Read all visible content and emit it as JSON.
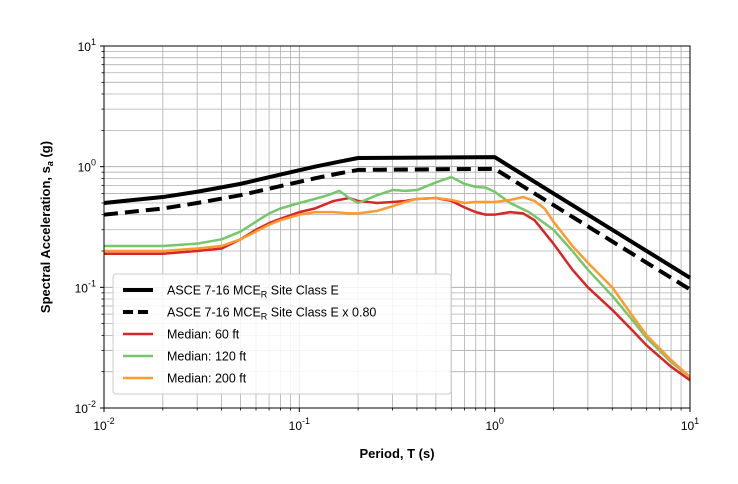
{
  "chart_data": {
    "type": "line",
    "xscale": "log",
    "yscale": "log",
    "xlim": [
      0.01,
      10
    ],
    "ylim": [
      0.01,
      10
    ],
    "grid": true,
    "xlabel": "Period, T (s)",
    "ylabel": {
      "main": "Spectral Acceleration, s",
      "sub": "a",
      "unit": " (g)"
    },
    "x_ticks": [
      {
        "base": "10",
        "exp": "-2"
      },
      {
        "base": "10",
        "exp": "-1"
      },
      {
        "base": "10",
        "exp": "0"
      },
      {
        "base": "10",
        "exp": "1"
      }
    ],
    "y_ticks": [
      {
        "base": "10",
        "exp": "-2"
      },
      {
        "base": "10",
        "exp": "-1"
      },
      {
        "base": "10",
        "exp": "0"
      },
      {
        "base": "10",
        "exp": "1"
      }
    ],
    "legend_position": "lower-left",
    "series": [
      {
        "name": "ASCE 7-16 MCER Site Class E",
        "legend": {
          "pre": "ASCE 7-16 MCE",
          "sub": "R",
          "post": " Site Class E"
        },
        "color": "#000000",
        "style": "solid",
        "width": 4,
        "points": [
          [
            0.01,
            0.5
          ],
          [
            0.02,
            0.56
          ],
          [
            0.03,
            0.62
          ],
          [
            0.05,
            0.72
          ],
          [
            0.08,
            0.86
          ],
          [
            0.12,
            1.0
          ],
          [
            0.16,
            1.1
          ],
          [
            0.2,
            1.18
          ],
          [
            1.0,
            1.2
          ],
          [
            10,
            0.12
          ]
        ]
      },
      {
        "name": "ASCE 7-16 MCER Site Class E x 0.80",
        "legend": {
          "pre": "ASCE 7-16 MCE",
          "sub": "R",
          "post": " Site Class E x 0.80"
        },
        "color": "#000000",
        "style": "dashed",
        "width": 4,
        "points": [
          [
            0.01,
            0.4
          ],
          [
            0.02,
            0.45
          ],
          [
            0.03,
            0.5
          ],
          [
            0.05,
            0.58
          ],
          [
            0.08,
            0.69
          ],
          [
            0.12,
            0.8
          ],
          [
            0.16,
            0.88
          ],
          [
            0.2,
            0.94
          ],
          [
            1.0,
            0.96
          ],
          [
            10,
            0.096
          ]
        ]
      },
      {
        "name": "Median: 60 ft",
        "legend": {
          "pre": "Median: 60 ft",
          "sub": "",
          "post": ""
        },
        "color": "#d62728",
        "style": "solid",
        "width": 2.5,
        "points": [
          [
            0.01,
            0.19
          ],
          [
            0.02,
            0.19
          ],
          [
            0.03,
            0.2
          ],
          [
            0.04,
            0.21
          ],
          [
            0.05,
            0.25
          ],
          [
            0.06,
            0.3
          ],
          [
            0.07,
            0.34
          ],
          [
            0.08,
            0.37
          ],
          [
            0.1,
            0.42
          ],
          [
            0.12,
            0.45
          ],
          [
            0.15,
            0.52
          ],
          [
            0.18,
            0.55
          ],
          [
            0.2,
            0.52
          ],
          [
            0.25,
            0.5
          ],
          [
            0.3,
            0.51
          ],
          [
            0.35,
            0.52
          ],
          [
            0.4,
            0.54
          ],
          [
            0.5,
            0.55
          ],
          [
            0.6,
            0.52
          ],
          [
            0.7,
            0.46
          ],
          [
            0.8,
            0.42
          ],
          [
            0.9,
            0.4
          ],
          [
            1.0,
            0.4
          ],
          [
            1.2,
            0.42
          ],
          [
            1.4,
            0.41
          ],
          [
            1.6,
            0.36
          ],
          [
            2.0,
            0.23
          ],
          [
            2.5,
            0.14
          ],
          [
            3.0,
            0.1
          ],
          [
            4.0,
            0.065
          ],
          [
            5.0,
            0.045
          ],
          [
            6.0,
            0.033
          ],
          [
            8.0,
            0.022
          ],
          [
            10,
            0.017
          ]
        ]
      },
      {
        "name": "Median: 120 ft",
        "legend": {
          "pre": "Median: 120 ft",
          "sub": "",
          "post": ""
        },
        "color": "#77c66e",
        "style": "solid",
        "width": 2.5,
        "points": [
          [
            0.01,
            0.22
          ],
          [
            0.02,
            0.22
          ],
          [
            0.03,
            0.23
          ],
          [
            0.04,
            0.25
          ],
          [
            0.05,
            0.29
          ],
          [
            0.06,
            0.35
          ],
          [
            0.07,
            0.41
          ],
          [
            0.08,
            0.45
          ],
          [
            0.1,
            0.5
          ],
          [
            0.12,
            0.54
          ],
          [
            0.14,
            0.58
          ],
          [
            0.16,
            0.63
          ],
          [
            0.18,
            0.55
          ],
          [
            0.2,
            0.5
          ],
          [
            0.25,
            0.58
          ],
          [
            0.3,
            0.64
          ],
          [
            0.35,
            0.63
          ],
          [
            0.4,
            0.64
          ],
          [
            0.5,
            0.74
          ],
          [
            0.6,
            0.82
          ],
          [
            0.7,
            0.72
          ],
          [
            0.8,
            0.68
          ],
          [
            0.9,
            0.67
          ],
          [
            1.0,
            0.62
          ],
          [
            1.2,
            0.5
          ],
          [
            1.5,
            0.42
          ],
          [
            2.0,
            0.3
          ],
          [
            2.5,
            0.2
          ],
          [
            3.0,
            0.14
          ],
          [
            4.0,
            0.085
          ],
          [
            5.0,
            0.055
          ],
          [
            6.0,
            0.038
          ],
          [
            8.0,
            0.024
          ],
          [
            10,
            0.018
          ]
        ]
      },
      {
        "name": "Median: 200 ft",
        "legend": {
          "pre": "Median: 200 ft",
          "sub": "",
          "post": ""
        },
        "color": "#ff9a2e",
        "style": "solid",
        "width": 2.5,
        "points": [
          [
            0.01,
            0.2
          ],
          [
            0.02,
            0.2
          ],
          [
            0.03,
            0.21
          ],
          [
            0.04,
            0.22
          ],
          [
            0.05,
            0.25
          ],
          [
            0.06,
            0.29
          ],
          [
            0.07,
            0.33
          ],
          [
            0.08,
            0.36
          ],
          [
            0.1,
            0.4
          ],
          [
            0.12,
            0.42
          ],
          [
            0.15,
            0.42
          ],
          [
            0.18,
            0.41
          ],
          [
            0.2,
            0.41
          ],
          [
            0.25,
            0.43
          ],
          [
            0.3,
            0.47
          ],
          [
            0.35,
            0.51
          ],
          [
            0.4,
            0.54
          ],
          [
            0.5,
            0.55
          ],
          [
            0.6,
            0.53
          ],
          [
            0.7,
            0.5
          ],
          [
            0.8,
            0.51
          ],
          [
            1.0,
            0.51
          ],
          [
            1.2,
            0.53
          ],
          [
            1.4,
            0.56
          ],
          [
            1.6,
            0.52
          ],
          [
            1.8,
            0.45
          ],
          [
            2.0,
            0.35
          ],
          [
            2.5,
            0.22
          ],
          [
            3.0,
            0.16
          ],
          [
            4.0,
            0.1
          ],
          [
            5.0,
            0.06
          ],
          [
            6.0,
            0.04
          ],
          [
            8.0,
            0.025
          ],
          [
            10,
            0.018
          ]
        ]
      }
    ]
  }
}
